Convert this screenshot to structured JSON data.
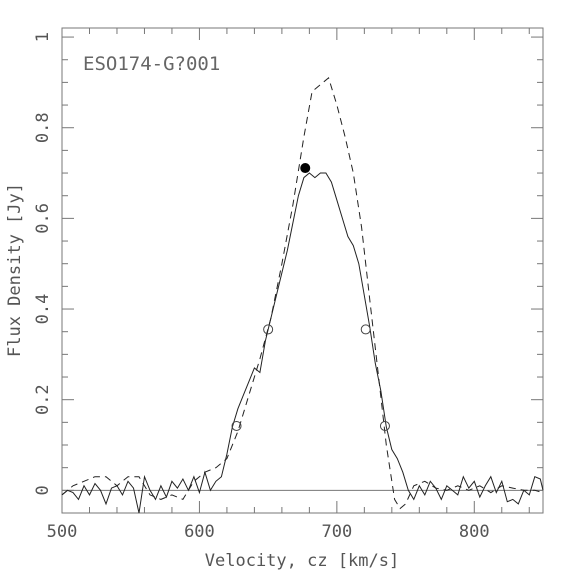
{
  "chart_data": {
    "type": "line",
    "title": "",
    "annotation": "ESO174-G?001",
    "xlabel": "Velocity, cz [km/s]",
    "ylabel": "Flux Density [Jy]",
    "xlim": [
      500,
      850
    ],
    "ylim": [
      -0.05,
      1.02
    ],
    "x_ticks": [
      500,
      600,
      700,
      800
    ],
    "x_tick_labels": [
      "500",
      "600",
      "700",
      "800"
    ],
    "y_ticks": [
      0,
      0.2,
      0.4,
      0.6,
      0.8,
      1
    ],
    "y_tick_labels": [
      "0",
      "0.2",
      "0.4",
      "0.6",
      "0.8",
      "1"
    ],
    "grid": false,
    "zero_line": 0,
    "series": [
      {
        "style": "solid",
        "x": [
          500,
          504,
          508,
          512,
          516,
          520,
          524,
          528,
          532,
          536,
          540,
          544,
          548,
          552,
          556,
          560,
          564,
          568,
          572,
          576,
          580,
          584,
          588,
          592,
          596,
          600,
          604,
          608,
          612,
          616,
          620,
          624,
          628,
          632,
          636,
          640,
          644,
          648,
          652,
          656,
          660,
          664,
          668,
          672,
          676,
          680,
          684,
          688,
          692,
          696,
          700,
          704,
          708,
          712,
          716,
          720,
          724,
          728,
          732,
          736,
          740,
          744,
          748,
          752,
          756,
          760,
          764,
          768,
          772,
          776,
          780,
          784,
          788,
          792,
          796,
          800,
          804,
          808,
          812,
          816,
          820,
          824,
          828,
          832,
          836,
          840,
          844,
          848,
          850
        ],
        "y": [
          -0.01,
          0.0,
          -0.005,
          -0.02,
          0.01,
          -0.01,
          0.015,
          0.0,
          -0.03,
          0.005,
          0.01,
          -0.01,
          0.02,
          0.005,
          -0.05,
          0.03,
          0.0,
          -0.02,
          0.01,
          -0.015,
          0.02,
          0.005,
          0.025,
          0.0,
          0.03,
          -0.005,
          0.04,
          0.0,
          0.02,
          0.03,
          0.08,
          0.14,
          0.18,
          0.21,
          0.24,
          0.27,
          0.26,
          0.33,
          0.38,
          0.43,
          0.48,
          0.53,
          0.59,
          0.65,
          0.69,
          0.7,
          0.69,
          0.7,
          0.7,
          0.68,
          0.64,
          0.6,
          0.56,
          0.54,
          0.5,
          0.43,
          0.36,
          0.28,
          0.22,
          0.14,
          0.09,
          0.07,
          0.04,
          0.0,
          -0.02,
          0.01,
          -0.01,
          0.02,
          0.005,
          -0.02,
          0.01,
          0.0,
          -0.01,
          0.03,
          0.005,
          0.02,
          -0.015,
          0.01,
          0.03,
          -0.005,
          0.02,
          -0.025,
          -0.02,
          -0.03,
          0.0,
          -0.01,
          0.03,
          0.025,
          0.0
        ]
      },
      {
        "style": "dashed",
        "x": [
          500,
          508,
          516,
          524,
          532,
          540,
          548,
          556,
          564,
          572,
          580,
          588,
          596,
          604,
          612,
          620,
          628,
          636,
          644,
          652,
          660,
          668,
          676,
          682,
          690,
          694,
          700,
          706,
          712,
          718,
          724,
          730,
          736,
          742,
          746,
          750,
          756,
          764,
          772,
          780,
          788,
          796,
          804,
          812,
          820,
          828,
          836,
          844,
          850
        ],
        "y": [
          -0.01,
          0.01,
          0.02,
          0.03,
          0.03,
          0.01,
          0.03,
          0.03,
          -0.01,
          -0.02,
          -0.01,
          -0.02,
          0.02,
          0.04,
          0.05,
          0.07,
          0.13,
          0.21,
          0.29,
          0.38,
          0.5,
          0.63,
          0.78,
          0.88,
          0.9,
          0.91,
          0.85,
          0.78,
          0.7,
          0.58,
          0.42,
          0.26,
          0.1,
          -0.02,
          -0.04,
          -0.03,
          0.01,
          0.02,
          0.005,
          0.0,
          0.01,
          0.0,
          0.01,
          -0.005,
          0.01,
          0.005,
          0.0,
          0.0,
          -0.005
        ]
      }
    ],
    "markers": [
      {
        "kind": "filled",
        "x": 677,
        "y": 0.711
      },
      {
        "kind": "open",
        "x": 627,
        "y": 0.142
      },
      {
        "kind": "open",
        "x": 650,
        "y": 0.355
      },
      {
        "kind": "open",
        "x": 721,
        "y": 0.355
      },
      {
        "kind": "open",
        "x": 735,
        "y": 0.142
      }
    ]
  }
}
